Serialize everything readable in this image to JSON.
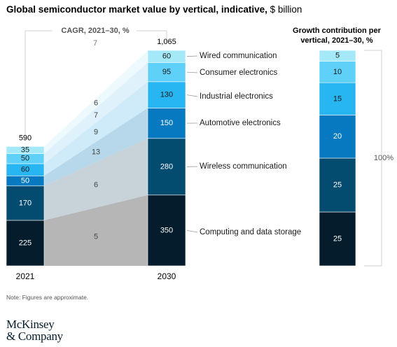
{
  "title": "Global semiconductor market value by vertical, indicative,",
  "title_unit": "$ billion",
  "note": "Note: Figures are approximate.",
  "logo": {
    "line1": "McKinsey",
    "line2": "& Company"
  },
  "chart_data": {
    "type": "bar",
    "title": "Global semiconductor market value by vertical, indicative, $ billion",
    "categories": [
      "2021",
      "2030"
    ],
    "totals": [
      590,
      1065
    ],
    "cagr_label": "CAGR, 2021–30, %",
    "contribution_title": "Growth contribution per vertical, 2021–30, %",
    "contribution_total_label": "100%",
    "series": [
      {
        "name": "Computing and data storage",
        "values": [
          225,
          350
        ],
        "cagr": 5,
        "contribution": 25,
        "color": "#051c2c"
      },
      {
        "name": "Wireless communication",
        "values": [
          170,
          280
        ],
        "cagr": 6,
        "contribution": 25,
        "color": "#034b6f"
      },
      {
        "name": "Automotive electronics",
        "values": [
          50,
          150
        ],
        "cagr": 13,
        "contribution": 20,
        "color": "#0679c1"
      },
      {
        "name": "Industrial electronics",
        "values": [
          60,
          130
        ],
        "cagr": 9,
        "contribution": 15,
        "color": "#27b6f2"
      },
      {
        "name": "Consumer electronics",
        "values": [
          50,
          95
        ],
        "cagr": 7,
        "contribution": 10,
        "color": "#5fd1f9"
      },
      {
        "name": "Wired communication",
        "values": [
          35,
          60
        ],
        "cagr": 6,
        "contribution": 5,
        "color": "#a5e9f9"
      }
    ],
    "cagr_top_label": "7"
  }
}
